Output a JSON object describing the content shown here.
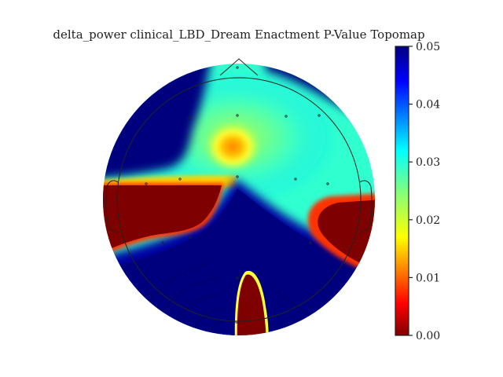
{
  "chart_data": {
    "type": "heatmap",
    "subtype": "topomap",
    "title": "delta_power clinical_LBD_Dream Enactment P-Value Topomap",
    "colormap": "jet_r",
    "colorbar": {
      "range": [
        0.0,
        0.05
      ],
      "ticks": [
        "0.00",
        "0.01",
        "0.02",
        "0.03",
        "0.04",
        "0.05"
      ],
      "placement": "right"
    },
    "sensor_count": 15,
    "regions": [
      {
        "name": "left-temporal-significant",
        "p_value": 0.0
      },
      {
        "name": "right-temporal-significant",
        "p_value": 0.0
      },
      {
        "name": "occipital-midline-significant",
        "p_value": 0.0
      },
      {
        "name": "frontocentral-focus",
        "p_value": 0.012
      },
      {
        "name": "posterior-background",
        "p_value": 0.05
      }
    ]
  }
}
